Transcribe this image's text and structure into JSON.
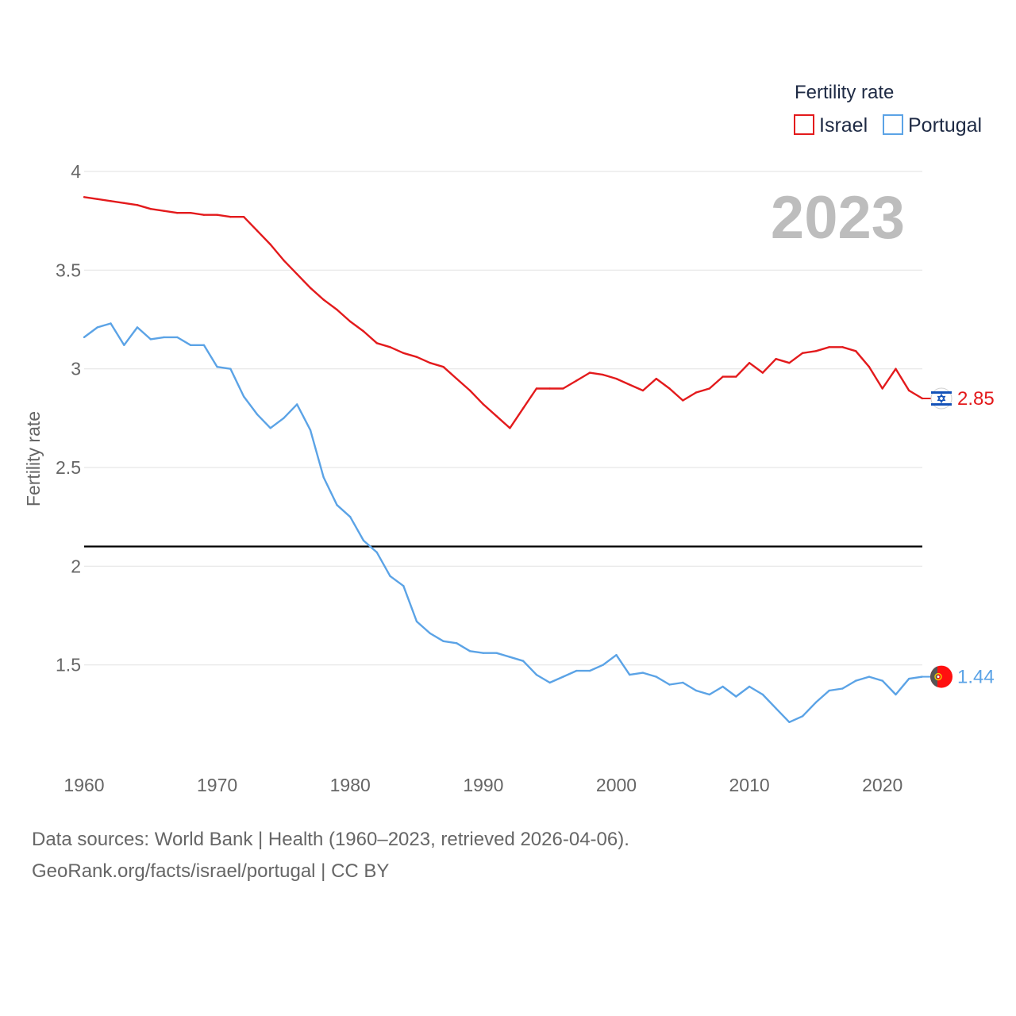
{
  "colors": {
    "israel": "#e31a1c",
    "portugal": "#5ba3e6",
    "grid": "#e6e6e6",
    "reference": "#000000"
  },
  "legend": {
    "title": "Fertility rate",
    "items": [
      {
        "name": "Israel",
        "color": "#e31a1c"
      },
      {
        "name": "Portugal",
        "color": "#5ba3e6"
      }
    ]
  },
  "year_label": "2023",
  "end_labels": {
    "israel": "2.85",
    "portugal": "1.44"
  },
  "flags": {
    "israel": "israel-flag-icon",
    "portugal": "portugal-flag-icon"
  },
  "source": {
    "line1": "Data sources: World Bank | Health (1960–2023, retrieved 2026-04-06).",
    "line2": "GeoRank.org/facts/israel/portugal | CC BY"
  },
  "chart_data": {
    "type": "line",
    "title": "Fertility rate",
    "xlabel": "",
    "ylabel": "Fertility rate",
    "xlim": [
      1960,
      2023
    ],
    "ylim": [
      1.0,
      4.0
    ],
    "xticks": [
      1960,
      1970,
      1980,
      1990,
      2000,
      2010,
      2020
    ],
    "yticks": [
      1.5,
      2,
      2.5,
      3,
      3.5,
      4
    ],
    "ytick_labels": [
      "1.5",
      "2",
      "2.5",
      "3",
      "3.5",
      "4"
    ],
    "reference_line": 2.1,
    "x": [
      1960,
      1961,
      1962,
      1963,
      1964,
      1965,
      1966,
      1967,
      1968,
      1969,
      1970,
      1971,
      1972,
      1973,
      1974,
      1975,
      1976,
      1977,
      1978,
      1979,
      1980,
      1981,
      1982,
      1983,
      1984,
      1985,
      1986,
      1987,
      1988,
      1989,
      1990,
      1991,
      1992,
      1993,
      1994,
      1995,
      1996,
      1997,
      1998,
      1999,
      2000,
      2001,
      2002,
      2003,
      2004,
      2005,
      2006,
      2007,
      2008,
      2009,
      2010,
      2011,
      2012,
      2013,
      2014,
      2015,
      2016,
      2017,
      2018,
      2019,
      2020,
      2021,
      2022,
      2023
    ],
    "series": [
      {
        "name": "Israel",
        "values": [
          3.87,
          3.86,
          3.85,
          3.84,
          3.83,
          3.81,
          3.8,
          3.79,
          3.79,
          3.78,
          3.78,
          3.77,
          3.77,
          3.7,
          3.63,
          3.55,
          3.48,
          3.41,
          3.35,
          3.3,
          3.24,
          3.19,
          3.13,
          3.11,
          3.08,
          3.06,
          3.03,
          3.01,
          2.95,
          2.89,
          2.82,
          2.76,
          2.7,
          2.8,
          2.9,
          2.9,
          2.9,
          2.94,
          2.98,
          2.97,
          2.95,
          2.92,
          2.89,
          2.95,
          2.9,
          2.84,
          2.88,
          2.9,
          2.96,
          2.96,
          3.03,
          2.98,
          3.05,
          3.03,
          3.08,
          3.09,
          3.11,
          3.11,
          3.09,
          3.01,
          2.9,
          3.0,
          2.89,
          2.85
        ]
      },
      {
        "name": "Portugal",
        "values": [
          3.16,
          3.21,
          3.23,
          3.12,
          3.21,
          3.15,
          3.16,
          3.16,
          3.12,
          3.12,
          3.01,
          3.0,
          2.86,
          2.77,
          2.7,
          2.75,
          2.82,
          2.69,
          2.45,
          2.31,
          2.25,
          2.13,
          2.07,
          1.95,
          1.9,
          1.72,
          1.66,
          1.62,
          1.61,
          1.57,
          1.56,
          1.56,
          1.54,
          1.52,
          1.45,
          1.41,
          1.44,
          1.47,
          1.47,
          1.5,
          1.55,
          1.45,
          1.46,
          1.44,
          1.4,
          1.41,
          1.37,
          1.35,
          1.39,
          1.34,
          1.39,
          1.35,
          1.28,
          1.21,
          1.24,
          1.31,
          1.37,
          1.38,
          1.42,
          1.44,
          1.42,
          1.35,
          1.43,
          1.44
        ]
      }
    ]
  }
}
